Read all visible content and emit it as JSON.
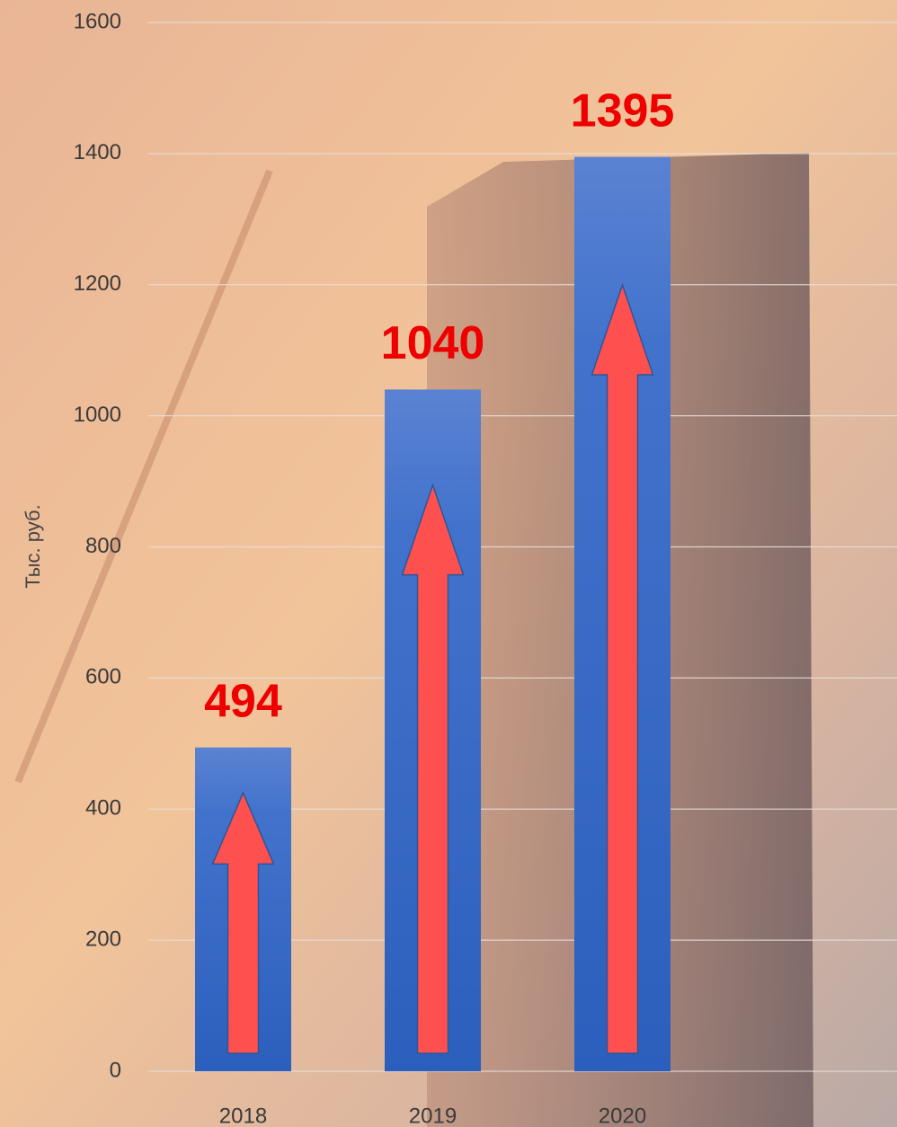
{
  "chart_data": {
    "type": "bar",
    "y_axis_label": "Тыс. руб.",
    "categories": [
      "2018",
      "2019",
      "2020"
    ],
    "values": [
      494,
      1040,
      1395
    ],
    "color": "#3a6cc8",
    "value_label_color": "#ee0000",
    "ylim": [
      0,
      1600
    ],
    "yticks": [
      0,
      200,
      400,
      600,
      800,
      1000,
      1200,
      1400,
      1600
    ],
    "grid": true
  }
}
